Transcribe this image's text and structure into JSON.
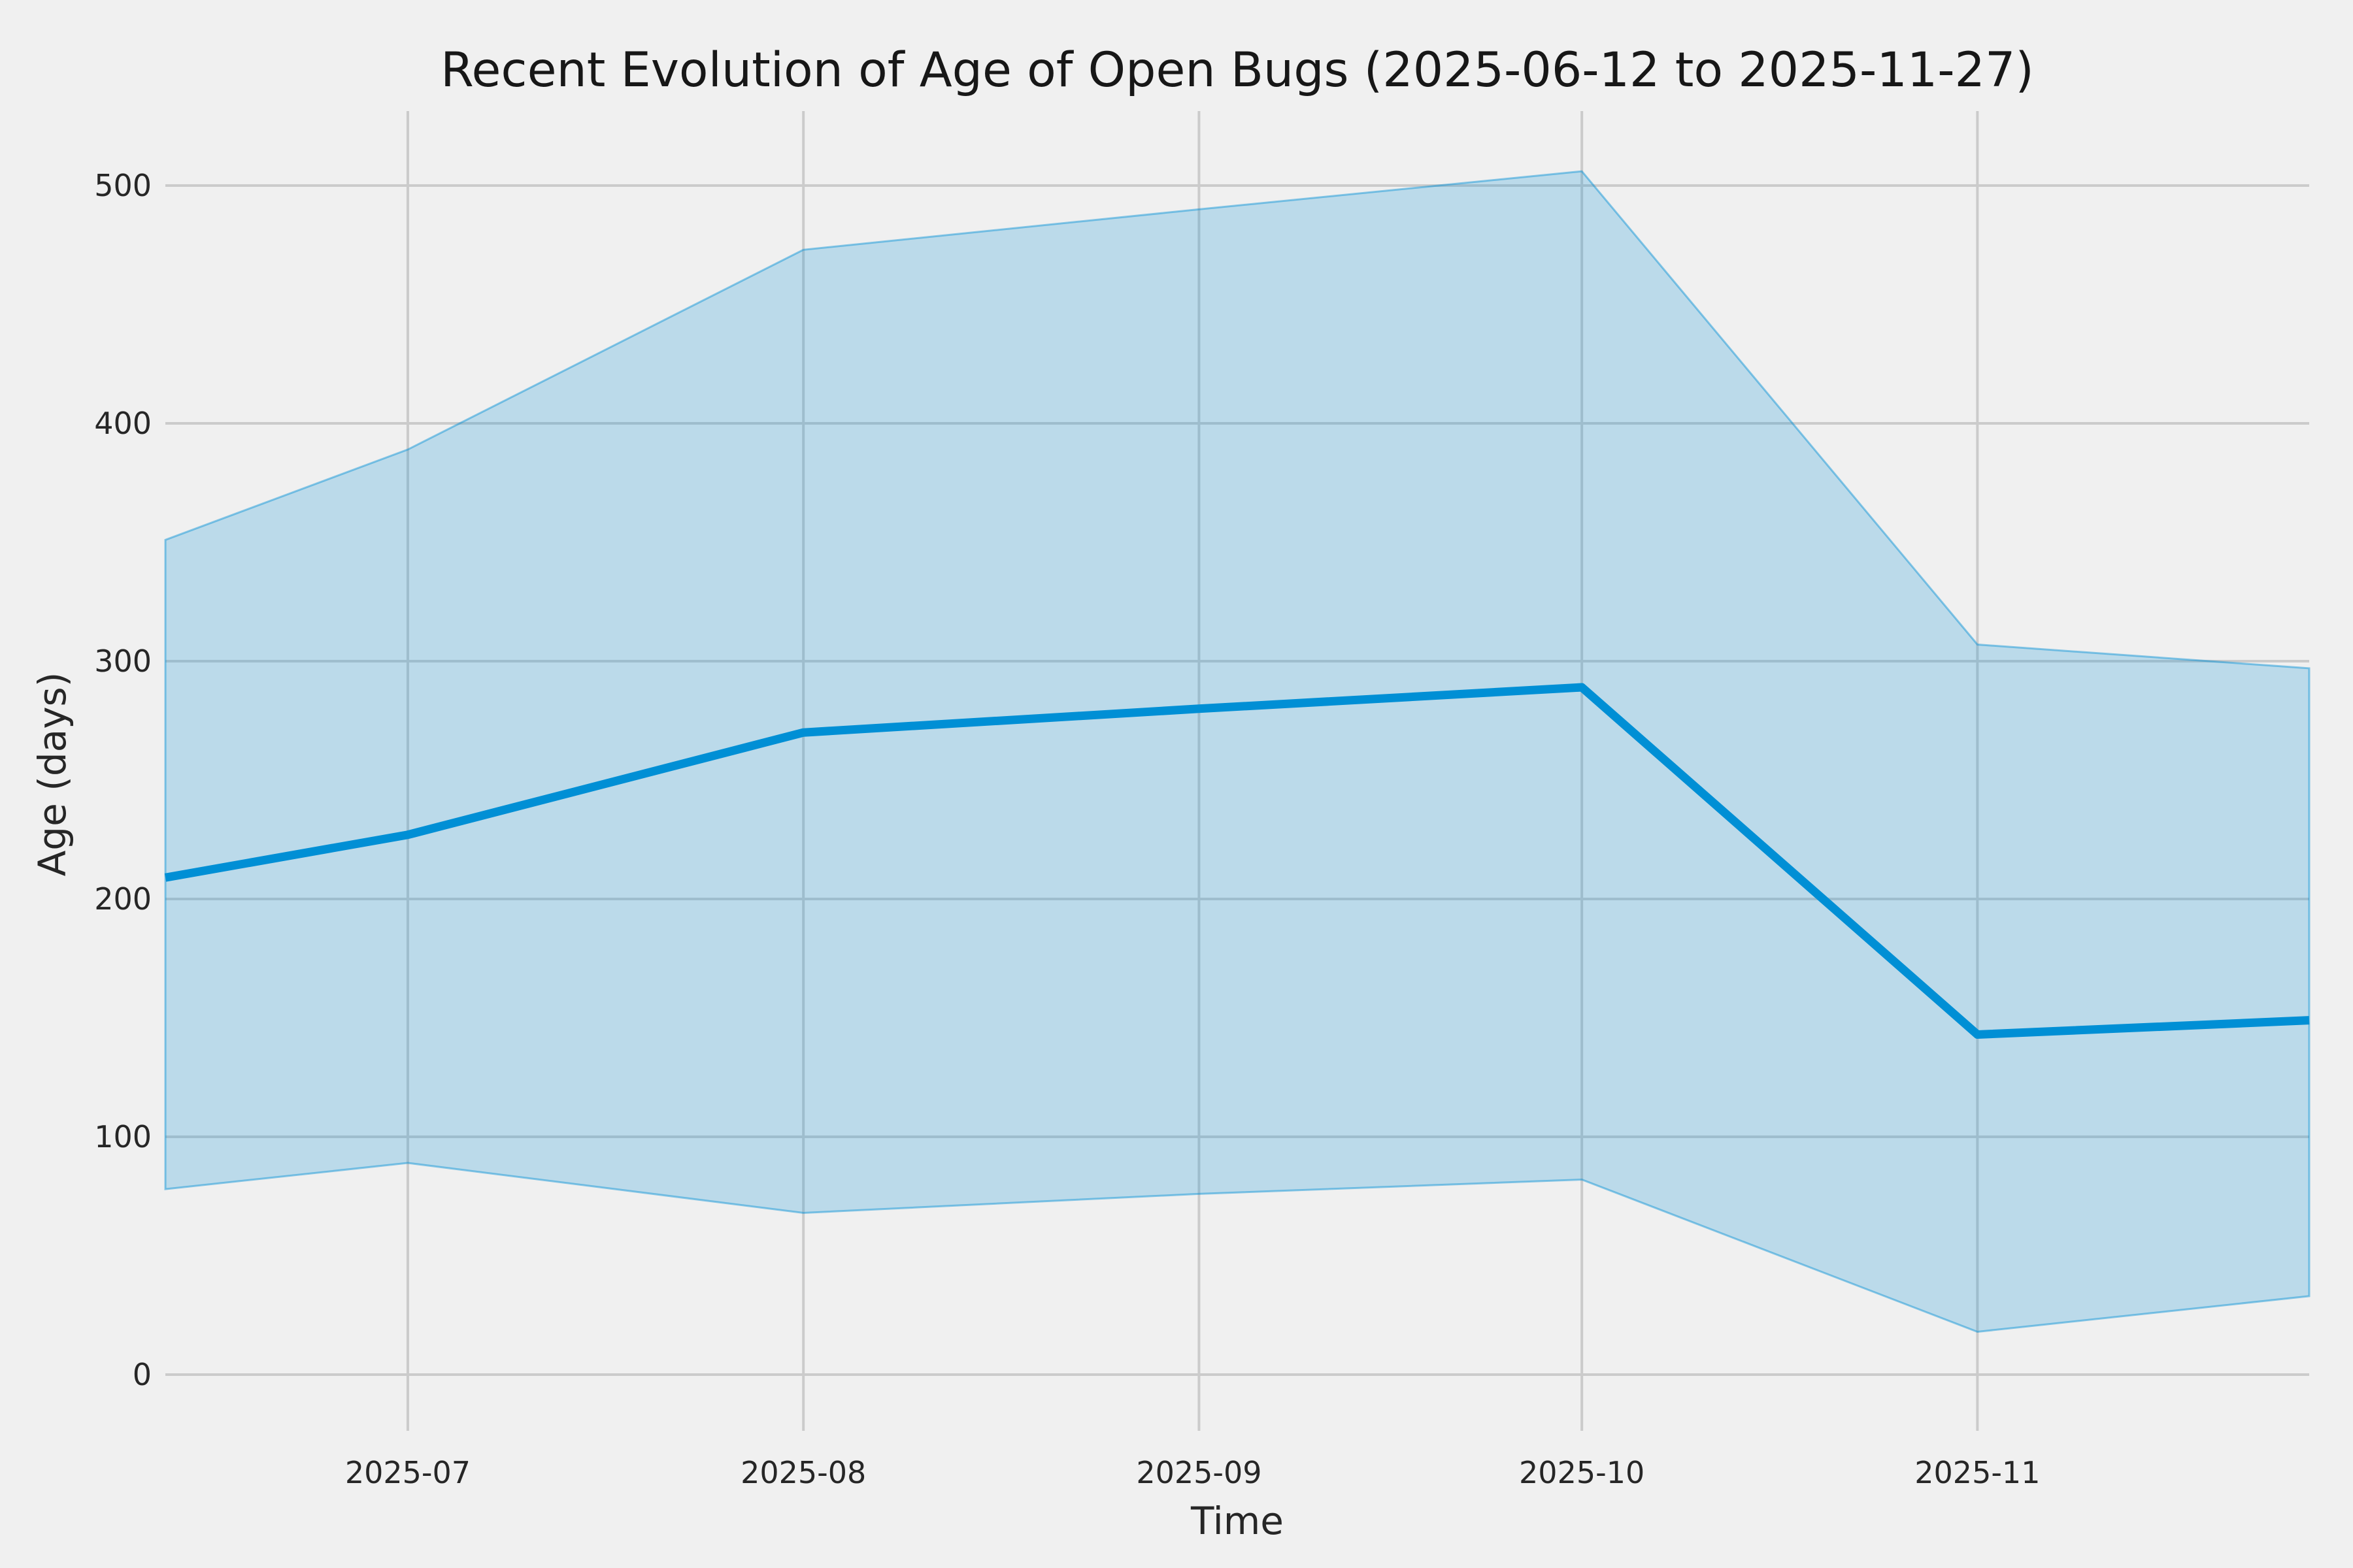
{
  "chart_data": {
    "type": "line",
    "title": "Recent Evolution of Age of Open Bugs (2025-06-12 to 2025-11-27)",
    "xlabel": "Time",
    "ylabel": "Age (days)",
    "date_range": {
      "start": "2025-06-12",
      "end": "2025-11-27",
      "span_days": 168
    },
    "x_dates": [
      "2025-06-12",
      "2025-07-01",
      "2025-08-01",
      "2025-09-01",
      "2025-10-01",
      "2025-11-01",
      "2025-11-27"
    ],
    "x_day_offsets": [
      0,
      19,
      50,
      81,
      111,
      142,
      168
    ],
    "series": [
      {
        "name": "median-age-line",
        "values": [
          209,
          227,
          270,
          280,
          289,
          143,
          149
        ]
      },
      {
        "name": "band-upper-bound",
        "values": [
          351,
          389,
          473,
          490,
          506,
          307,
          297
        ]
      },
      {
        "name": "band-lower-bound",
        "values": [
          78,
          89,
          68,
          76,
          82,
          18,
          33
        ]
      }
    ],
    "x_tick_labels": [
      "2025-07",
      "2025-08",
      "2025-09",
      "2025-10",
      "2025-11"
    ],
    "x_tick_day_offsets": [
      19,
      50,
      81,
      111,
      142
    ],
    "y_ticks": [
      0,
      100,
      200,
      300,
      400,
      500
    ],
    "ylim": [
      -24,
      531
    ],
    "grid": true,
    "legend_position": "none",
    "colors": {
      "background": "#f0f0f0",
      "grid": "#cbcbcb",
      "line": "#008fd5",
      "band_fill": "rgba(0,143,213,0.22)",
      "band_edge": "rgba(0,143,213,0.45)",
      "tick_text": "#262626",
      "title_text": "#171717"
    }
  }
}
